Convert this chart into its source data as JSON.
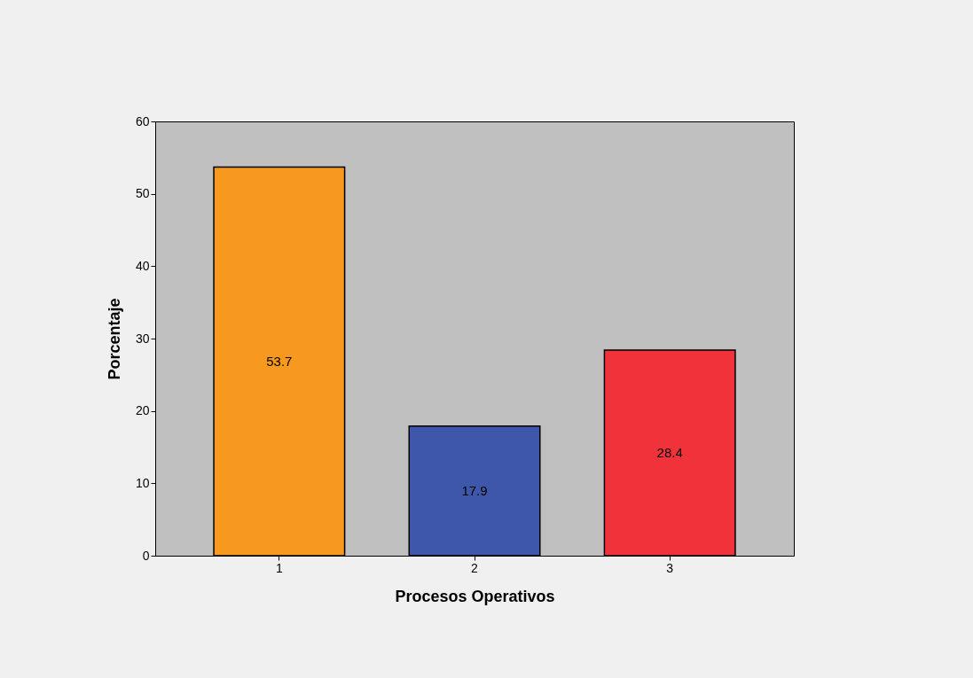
{
  "chart_data": {
    "type": "bar",
    "xlabel": "Procesos Operativos",
    "ylabel": "Porcentaje",
    "categories": [
      "1",
      "2",
      "3"
    ],
    "values": [
      53.7,
      17.9,
      28.4
    ],
    "colors": [
      "#f7991f",
      "#3f57ab",
      "#f0323a"
    ],
    "ylim": [
      0,
      60
    ],
    "yticks": [
      0,
      10,
      20,
      30,
      40,
      50,
      60
    ],
    "data_labels": true,
    "grid": false
  }
}
